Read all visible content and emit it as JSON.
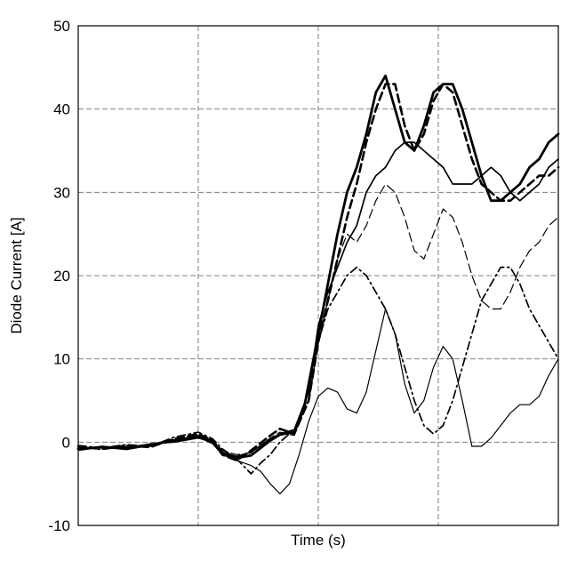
{
  "chart_data": {
    "type": "line",
    "title": "",
    "xlabel": "Time (s)",
    "ylabel": "Diode Current [A]",
    "ylim": [
      -10,
      50
    ],
    "yticks": [
      "-10",
      "0",
      "10",
      "20",
      "30",
      "40",
      "50"
    ],
    "xlim": [
      0,
      1
    ],
    "x_grid": [
      0.25,
      0.5,
      0.75
    ],
    "grid": true,
    "legend": "none",
    "series": [
      {
        "style": "thick-solid",
        "x": [
          0,
          0.05,
          0.1,
          0.15,
          0.2,
          0.25,
          0.28,
          0.3,
          0.33,
          0.36,
          0.4,
          0.42,
          0.45,
          0.47,
          0.5,
          0.52,
          0.54,
          0.56,
          0.58,
          0.6,
          0.62,
          0.64,
          0.66,
          0.68,
          0.7,
          0.72,
          0.74,
          0.76,
          0.78,
          0.8,
          0.82,
          0.84,
          0.86,
          0.88,
          0.9,
          0.92,
          0.94,
          0.96,
          0.98,
          1.0
        ],
        "y": [
          -0.8,
          -0.6,
          -0.7,
          -0.3,
          0.2,
          0.7,
          0.1,
          -1.3,
          -1.9,
          -1.6,
          0.2,
          0.9,
          1.2,
          4,
          13,
          19,
          25,
          30,
          33,
          37,
          42,
          44,
          40,
          36,
          35,
          38,
          42,
          43,
          43,
          40,
          36,
          32,
          29,
          29,
          30,
          31,
          33,
          34,
          36,
          37
        ]
      },
      {
        "style": "thick-dashed",
        "x": [
          0,
          0.05,
          0.1,
          0.15,
          0.2,
          0.25,
          0.28,
          0.3,
          0.33,
          0.36,
          0.4,
          0.42,
          0.45,
          0.48,
          0.5,
          0.52,
          0.54,
          0.56,
          0.58,
          0.6,
          0.62,
          0.64,
          0.66,
          0.68,
          0.7,
          0.72,
          0.74,
          0.76,
          0.78,
          0.8,
          0.82,
          0.84,
          0.86,
          0.88,
          0.9,
          0.92,
          0.94,
          0.96,
          0.98,
          1.0
        ],
        "y": [
          -0.5,
          -0.8,
          -0.4,
          -0.6,
          0.4,
          1.0,
          0.2,
          -1.5,
          -2.2,
          -1.0,
          0.8,
          1.6,
          1.0,
          5,
          12,
          17,
          22,
          27,
          31,
          36,
          40,
          43,
          43,
          38,
          35,
          37,
          41,
          43,
          42,
          38,
          34,
          31,
          30,
          29,
          29,
          30,
          31,
          32,
          32,
          33
        ]
      },
      {
        "style": "medium-solid",
        "x": [
          0,
          0.05,
          0.1,
          0.15,
          0.2,
          0.25,
          0.28,
          0.3,
          0.33,
          0.36,
          0.4,
          0.42,
          0.45,
          0.48,
          0.5,
          0.52,
          0.54,
          0.56,
          0.58,
          0.6,
          0.62,
          0.64,
          0.66,
          0.68,
          0.7,
          0.72,
          0.74,
          0.76,
          0.78,
          0.8,
          0.82,
          0.84,
          0.86,
          0.88,
          0.9,
          0.92,
          0.94,
          0.96,
          0.98,
          1.0
        ],
        "y": [
          -0.9,
          -0.5,
          -0.8,
          -0.2,
          0.0,
          0.5,
          0.0,
          -1.2,
          -1.7,
          -1.2,
          0.4,
          1.0,
          1.5,
          6,
          14,
          18,
          21,
          24,
          26,
          30,
          32,
          33,
          35,
          36,
          36,
          35,
          34,
          33,
          31,
          31,
          31,
          32,
          33,
          32,
          30,
          29,
          30,
          31,
          33,
          34
        ]
      },
      {
        "style": "thin-dashed",
        "x": [
          0,
          0.05,
          0.1,
          0.15,
          0.2,
          0.25,
          0.28,
          0.3,
          0.33,
          0.36,
          0.4,
          0.42,
          0.45,
          0.48,
          0.5,
          0.52,
          0.54,
          0.56,
          0.58,
          0.6,
          0.62,
          0.64,
          0.66,
          0.68,
          0.7,
          0.72,
          0.74,
          0.76,
          0.78,
          0.8,
          0.82,
          0.84,
          0.86,
          0.88,
          0.9,
          0.92,
          0.94,
          0.96,
          0.98,
          1.0
        ],
        "y": [
          -0.6,
          -0.9,
          -0.5,
          -0.4,
          0.3,
          0.8,
          0.3,
          -1.0,
          -1.5,
          -1.3,
          0.5,
          1.2,
          0.8,
          5,
          12,
          17,
          22,
          25,
          24,
          26,
          29,
          31,
          30,
          27,
          23,
          22,
          25,
          28,
          27,
          24,
          20,
          17,
          16,
          16,
          18,
          21,
          23,
          24,
          26,
          27
        ]
      },
      {
        "style": "dash-dot",
        "x": [
          0,
          0.05,
          0.1,
          0.15,
          0.2,
          0.25,
          0.28,
          0.3,
          0.33,
          0.36,
          0.38,
          0.4,
          0.42,
          0.45,
          0.48,
          0.5,
          0.52,
          0.54,
          0.56,
          0.58,
          0.6,
          0.62,
          0.64,
          0.66,
          0.68,
          0.7,
          0.72,
          0.74,
          0.76,
          0.78,
          0.8,
          0.82,
          0.84,
          0.86,
          0.88,
          0.9,
          0.92,
          0.94,
          0.96,
          0.98,
          1.0
        ],
        "y": [
          -0.4,
          -0.7,
          -0.3,
          -0.5,
          0.6,
          1.2,
          0.4,
          -0.8,
          -2.0,
          -3.8,
          -2.5,
          -1.5,
          0.0,
          1.5,
          5,
          12,
          16,
          18,
          20,
          21,
          20,
          18,
          16,
          13,
          9,
          5,
          2,
          1,
          2,
          5,
          9,
          13,
          17,
          19,
          21,
          21,
          19,
          16,
          14,
          12,
          10
        ]
      },
      {
        "style": "thin-solid",
        "x": [
          0,
          0.05,
          0.1,
          0.15,
          0.2,
          0.25,
          0.28,
          0.3,
          0.33,
          0.36,
          0.38,
          0.4,
          0.42,
          0.44,
          0.46,
          0.48,
          0.5,
          0.52,
          0.54,
          0.56,
          0.58,
          0.6,
          0.62,
          0.64,
          0.66,
          0.68,
          0.7,
          0.72,
          0.74,
          0.76,
          0.78,
          0.8,
          0.82,
          0.84,
          0.86,
          0.88,
          0.9,
          0.92,
          0.94,
          0.96,
          0.98,
          1.0
        ],
        "y": [
          -1.0,
          -0.6,
          -0.9,
          -0.4,
          0.1,
          0.6,
          -0.2,
          -1.5,
          -2.2,
          -2.8,
          -3.5,
          -5.0,
          -6.2,
          -5.0,
          -1.5,
          2.5,
          5.5,
          6.5,
          6.0,
          4.0,
          3.5,
          6.0,
          11.0,
          16.0,
          13.0,
          7.0,
          3.5,
          5.0,
          9.0,
          11.5,
          10.0,
          5.0,
          -0.5,
          -0.5,
          0.5,
          2.0,
          3.5,
          4.5,
          4.5,
          5.5,
          8.0,
          10.0
        ]
      }
    ]
  }
}
